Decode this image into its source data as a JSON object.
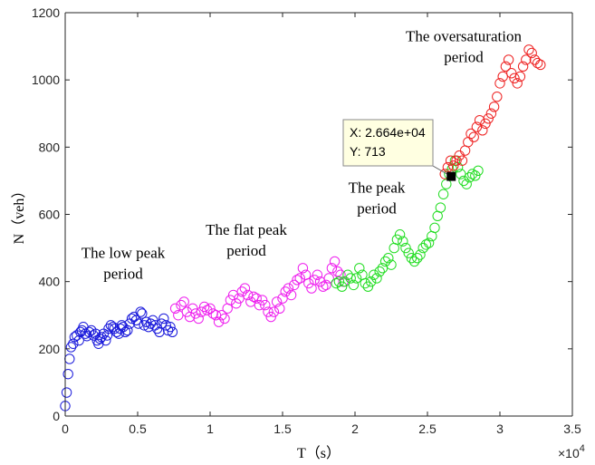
{
  "chart_data": {
    "type": "scatter",
    "xlabel": "T（s）",
    "ylabel": "N（veh）",
    "x_exponent_label": "×10",
    "x_exponent_power": "4",
    "xlim": [
      0,
      35000
    ],
    "ylim": [
      0,
      1200
    ],
    "x_ticks": [
      0,
      5000,
      10000,
      15000,
      20000,
      25000,
      30000,
      35000
    ],
    "x_tick_labels": [
      "0",
      "0.5",
      "1",
      "1.5",
      "2",
      "2.5",
      "3",
      "3.5"
    ],
    "y_ticks": [
      0,
      200,
      400,
      600,
      800,
      1000,
      1200
    ],
    "y_tick_labels": [
      "0",
      "200",
      "400",
      "600",
      "800",
      "1000",
      "1200"
    ],
    "grid": false,
    "colors": {
      "low_peak": "#1a1adb",
      "flat_peak": "#ee20ee",
      "peak": "#22dd22",
      "oversaturation": "#ee2222"
    },
    "annotations": [
      {
        "lines": [
          "The low peak",
          "period"
        ],
        "x": 4000,
        "y": 470
      },
      {
        "lines": [
          "The flat peak",
          "period"
        ],
        "x": 12500,
        "y": 540
      },
      {
        "lines": [
          "The peak",
          "period"
        ],
        "x": 21500,
        "y": 665
      },
      {
        "lines": [
          "The oversaturation",
          "period"
        ],
        "x": 27500,
        "y": 1115
      }
    ],
    "datatip": {
      "x_label": "X: 2.664e+04",
      "y_label": "Y: 713",
      "x": 26640,
      "y": 713
    },
    "series": [
      {
        "key": "low_peak",
        "points": [
          [
            0,
            30
          ],
          [
            100,
            70
          ],
          [
            200,
            125
          ],
          [
            300,
            170
          ],
          [
            400,
            205
          ],
          [
            550,
            215
          ],
          [
            650,
            235
          ],
          [
            800,
            240
          ],
          [
            950,
            225
          ],
          [
            1050,
            250
          ],
          [
            1150,
            255
          ],
          [
            1250,
            265
          ],
          [
            1400,
            245
          ],
          [
            1500,
            238
          ],
          [
            1650,
            250
          ],
          [
            1800,
            255
          ],
          [
            1950,
            240
          ],
          [
            2100,
            245
          ],
          [
            2200,
            225
          ],
          [
            2300,
            215
          ],
          [
            2400,
            230
          ],
          [
            2500,
            235
          ],
          [
            2650,
            245
          ],
          [
            2800,
            225
          ],
          [
            2900,
            240
          ],
          [
            3000,
            260
          ],
          [
            3150,
            270
          ],
          [
            3300,
            265
          ],
          [
            3400,
            260
          ],
          [
            3550,
            250
          ],
          [
            3700,
            245
          ],
          [
            3800,
            260
          ],
          [
            3900,
            270
          ],
          [
            4000,
            265
          ],
          [
            4150,
            250
          ],
          [
            4300,
            255
          ],
          [
            4450,
            275
          ],
          [
            4600,
            290
          ],
          [
            4750,
            295
          ],
          [
            4900,
            285
          ],
          [
            5050,
            275
          ],
          [
            5200,
            310
          ],
          [
            5300,
            305
          ],
          [
            5450,
            270
          ],
          [
            5600,
            280
          ],
          [
            5750,
            265
          ],
          [
            5900,
            275
          ],
          [
            6050,
            285
          ],
          [
            6200,
            270
          ],
          [
            6350,
            260
          ],
          [
            6500,
            250
          ],
          [
            6650,
            275
          ],
          [
            6800,
            290
          ],
          [
            6950,
            270
          ],
          [
            7100,
            255
          ],
          [
            7250,
            265
          ],
          [
            7400,
            250
          ]
        ]
      },
      {
        "key": "flat_peak",
        "points": [
          [
            7600,
            320
          ],
          [
            7800,
            300
          ],
          [
            8000,
            330
          ],
          [
            8200,
            340
          ],
          [
            8400,
            310
          ],
          [
            8600,
            295
          ],
          [
            8800,
            320
          ],
          [
            9000,
            305
          ],
          [
            9200,
            290
          ],
          [
            9400,
            310
          ],
          [
            9600,
            325
          ],
          [
            9800,
            315
          ],
          [
            10000,
            320
          ],
          [
            10200,
            305
          ],
          [
            10400,
            300
          ],
          [
            10600,
            280
          ],
          [
            10800,
            300
          ],
          [
            11000,
            290
          ],
          [
            11200,
            320
          ],
          [
            11400,
            345
          ],
          [
            11600,
            360
          ],
          [
            11800,
            335
          ],
          [
            12000,
            350
          ],
          [
            12200,
            370
          ],
          [
            12400,
            380
          ],
          [
            12600,
            360
          ],
          [
            12800,
            340
          ],
          [
            13000,
            355
          ],
          [
            13200,
            350
          ],
          [
            13400,
            330
          ],
          [
            13600,
            345
          ],
          [
            13800,
            330
          ],
          [
            14000,
            310
          ],
          [
            14200,
            295
          ],
          [
            14400,
            310
          ],
          [
            14600,
            340
          ],
          [
            14800,
            320
          ],
          [
            15000,
            350
          ],
          [
            15200,
            370
          ],
          [
            15400,
            380
          ],
          [
            15600,
            360
          ],
          [
            15800,
            390
          ],
          [
            16000,
            405
          ],
          [
            16200,
            410
          ],
          [
            16400,
            440
          ],
          [
            16600,
            420
          ],
          [
            16800,
            395
          ],
          [
            17000,
            380
          ],
          [
            17200,
            405
          ],
          [
            17400,
            420
          ],
          [
            17600,
            400
          ],
          [
            17800,
            385
          ],
          [
            18000,
            390
          ],
          [
            18200,
            410
          ],
          [
            18400,
            440
          ],
          [
            18600,
            460
          ],
          [
            18800,
            430
          ],
          [
            19000,
            420
          ],
          [
            19200,
            400
          ]
        ]
      },
      {
        "key": "peak",
        "points": [
          [
            18700,
            395
          ],
          [
            18900,
            400
          ],
          [
            19100,
            385
          ],
          [
            19300,
            400
          ],
          [
            19500,
            420
          ],
          [
            19700,
            410
          ],
          [
            19900,
            390
          ],
          [
            20100,
            410
          ],
          [
            20300,
            440
          ],
          [
            20500,
            420
          ],
          [
            20700,
            395
          ],
          [
            20900,
            385
          ],
          [
            21100,
            400
          ],
          [
            21300,
            420
          ],
          [
            21500,
            410
          ],
          [
            21700,
            430
          ],
          [
            21900,
            440
          ],
          [
            22100,
            460
          ],
          [
            22300,
            470
          ],
          [
            22500,
            450
          ],
          [
            22700,
            500
          ],
          [
            22900,
            525
          ],
          [
            23100,
            540
          ],
          [
            23300,
            520
          ],
          [
            23500,
            500
          ],
          [
            23700,
            485
          ],
          [
            23900,
            470
          ],
          [
            24100,
            460
          ],
          [
            24300,
            470
          ],
          [
            24500,
            480
          ],
          [
            24700,
            500
          ],
          [
            24900,
            510
          ],
          [
            25100,
            515
          ],
          [
            25300,
            535
          ],
          [
            25500,
            560
          ],
          [
            25700,
            595
          ],
          [
            25900,
            620
          ],
          [
            26100,
            660
          ],
          [
            26300,
            690
          ],
          [
            26500,
            720
          ],
          [
            26700,
            735
          ],
          [
            26900,
            760
          ],
          [
            27100,
            740
          ],
          [
            27300,
            720
          ],
          [
            27500,
            700
          ],
          [
            27700,
            690
          ],
          [
            27900,
            710
          ],
          [
            28100,
            720
          ],
          [
            28300,
            715
          ],
          [
            28500,
            730
          ]
        ]
      },
      {
        "key": "oversaturation",
        "points": [
          [
            26200,
            720
          ],
          [
            26400,
            740
          ],
          [
            26600,
            760
          ],
          [
            26800,
            745
          ],
          [
            27000,
            760
          ],
          [
            27200,
            775
          ],
          [
            27400,
            760
          ],
          [
            27600,
            790
          ],
          [
            27800,
            815
          ],
          [
            28000,
            840
          ],
          [
            28200,
            830
          ],
          [
            28400,
            860
          ],
          [
            28600,
            880
          ],
          [
            28800,
            850
          ],
          [
            29000,
            870
          ],
          [
            29200,
            885
          ],
          [
            29400,
            900
          ],
          [
            29600,
            920
          ],
          [
            29800,
            950
          ],
          [
            30000,
            990
          ],
          [
            30200,
            1010
          ],
          [
            30400,
            1040
          ],
          [
            30600,
            1060
          ],
          [
            30800,
            1020
          ],
          [
            31000,
            1005
          ],
          [
            31200,
            990
          ],
          [
            31400,
            1010
          ],
          [
            31600,
            1040
          ],
          [
            31800,
            1060
          ],
          [
            32000,
            1090
          ],
          [
            32200,
            1080
          ],
          [
            32400,
            1060
          ],
          [
            32600,
            1050
          ],
          [
            32800,
            1045
          ]
        ]
      }
    ]
  }
}
